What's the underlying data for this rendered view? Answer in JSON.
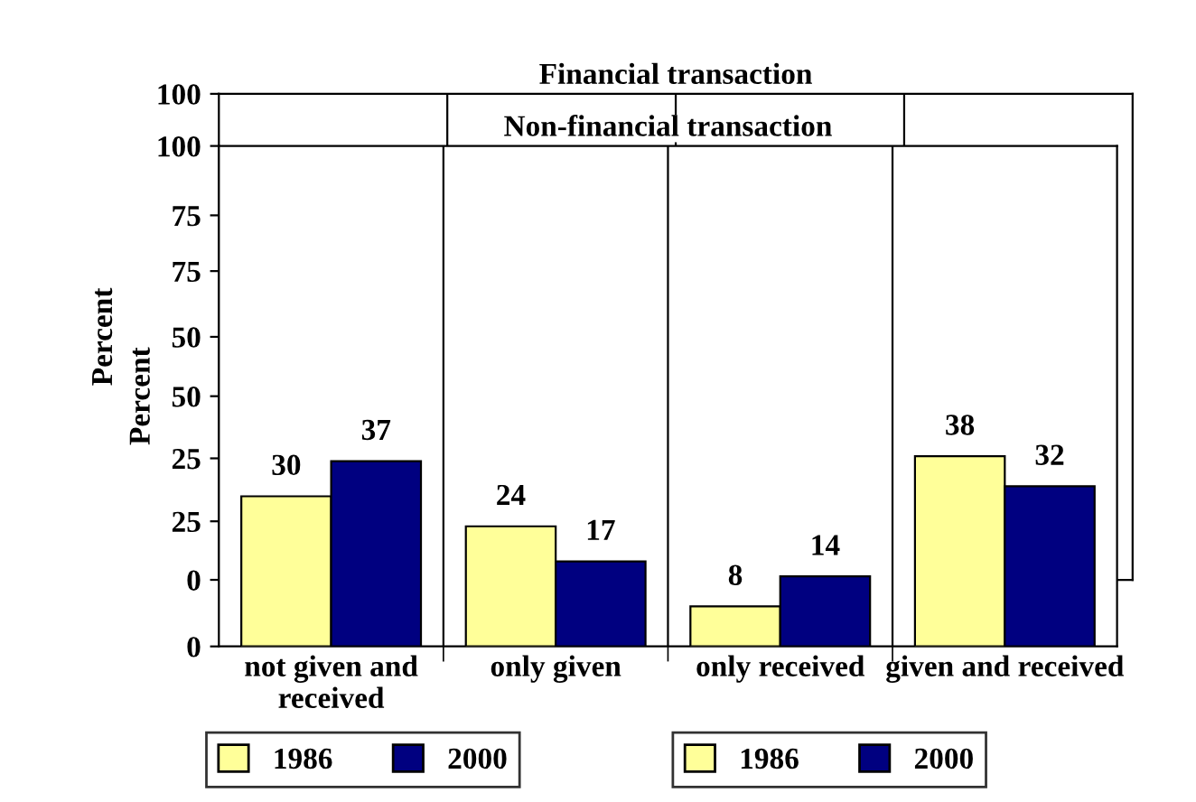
{
  "chart_data": [
    {
      "type": "bar",
      "title": "Financial transaction",
      "ylabel": "Percent",
      "categories": [
        null,
        null,
        null,
        null
      ],
      "series": [
        {
          "name": "1986",
          "color": "#ffff99",
          "values": [
            null,
            null,
            null,
            null
          ]
        },
        {
          "name": "2000",
          "color": "#000080",
          "values": [
            null,
            null,
            null,
            null
          ]
        }
      ],
      "ylim": [
        0,
        100
      ],
      "yticks": [
        0,
        25,
        50,
        75,
        100
      ],
      "grid": "x",
      "legend": "bottom",
      "tick_labels": "y"
    },
    {
      "type": "bar",
      "title": "Non-financial transaction",
      "ylabel": "Percent",
      "categories": [
        "not given and received",
        "only given",
        "only received",
        "given and received"
      ],
      "series": [
        {
          "name": "1986",
          "color": "#ffff99",
          "values": [
            30,
            24,
            8,
            38
          ]
        },
        {
          "name": "2000",
          "color": "#000080",
          "values": [
            37,
            17,
            14,
            32
          ]
        }
      ],
      "ylim": [
        0,
        100
      ],
      "yticks": [
        0,
        25,
        50,
        75,
        100
      ],
      "grid": "x",
      "legend": "bottom",
      "data_labels": true
    }
  ]
}
